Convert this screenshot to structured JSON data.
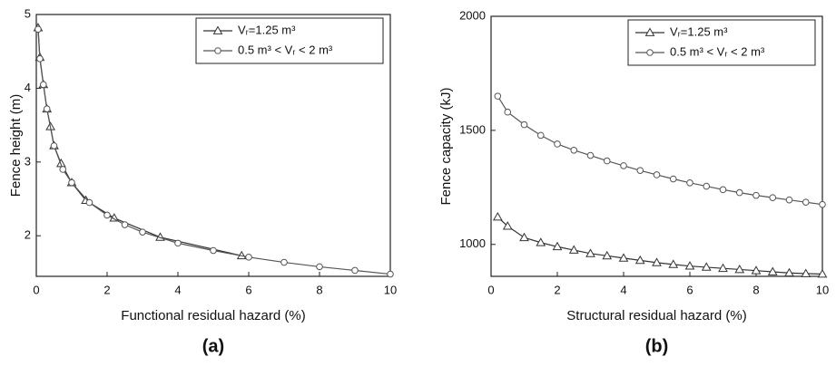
{
  "chart_data": [
    {
      "type": "line",
      "panel_label": "(a)",
      "x_label": "Functional residual hazard (%)",
      "y_label": "Fence height (m)",
      "xlim": [
        0,
        10
      ],
      "xticks": [
        0,
        2,
        4,
        6,
        8,
        10
      ],
      "ylim": [
        1.45,
        5
      ],
      "yticks": [
        2,
        3,
        4,
        5
      ],
      "legend": "upper right",
      "series": [
        {
          "name": "Vᵣ=1.25 m³",
          "color": "#333333",
          "marker": "triangle",
          "x": [
            0.05,
            0.1,
            0.2,
            0.3,
            0.4,
            0.5,
            0.7,
            1.0,
            1.4,
            2.2,
            3.5,
            5.8
          ],
          "values": [
            4.82,
            4.42,
            4.05,
            3.72,
            3.48,
            3.22,
            2.98,
            2.72,
            2.48,
            2.24,
            1.98,
            1.73
          ]
        },
        {
          "name": "0.5 m³ < Vᵣ < 2 m³",
          "color": "#555555",
          "marker": "circle",
          "x": [
            0.05,
            0.1,
            0.2,
            0.3,
            0.5,
            0.75,
            1,
            1.5,
            2,
            2.5,
            3,
            4,
            5,
            6,
            7,
            8,
            9,
            10
          ],
          "values": [
            4.8,
            4.4,
            4.05,
            3.72,
            3.22,
            2.9,
            2.72,
            2.45,
            2.28,
            2.15,
            2.05,
            1.9,
            1.8,
            1.71,
            1.64,
            1.58,
            1.53,
            1.48
          ]
        }
      ]
    },
    {
      "type": "line",
      "panel_label": "(b)",
      "x_label": "Structural residual hazard (%)",
      "y_label": "Fence capacity (kJ)",
      "xlim": [
        0,
        10
      ],
      "xticks": [
        0,
        2,
        4,
        6,
        8,
        10
      ],
      "ylim": [
        860,
        2000
      ],
      "yticks": [
        1000,
        1500,
        2000
      ],
      "legend": "upper right",
      "series": [
        {
          "name": "Vᵣ=1.25 m³",
          "color": "#333333",
          "marker": "triangle",
          "x": [
            0.2,
            0.5,
            1,
            1.5,
            2,
            2.5,
            3,
            3.5,
            4,
            4.5,
            5,
            5.5,
            6,
            6.5,
            7,
            7.5,
            8,
            8.5,
            9,
            9.5,
            10
          ],
          "values": [
            1120,
            1080,
            1030,
            1008,
            990,
            975,
            960,
            950,
            940,
            930,
            920,
            912,
            905,
            900,
            895,
            890,
            885,
            880,
            875,
            872,
            870
          ]
        },
        {
          "name": "0.5 m³ < Vᵣ < 2 m³",
          "color": "#555555",
          "marker": "circle",
          "x": [
            0.2,
            0.5,
            1,
            1.5,
            2,
            2.5,
            3,
            3.5,
            4,
            4.5,
            5,
            5.5,
            6,
            6.5,
            7,
            7.5,
            8,
            8.5,
            9,
            9.5,
            10
          ],
          "values": [
            1650,
            1580,
            1525,
            1478,
            1440,
            1413,
            1390,
            1366,
            1345,
            1324,
            1305,
            1287,
            1270,
            1255,
            1240,
            1227,
            1215,
            1205,
            1195,
            1185,
            1175
          ]
        }
      ]
    }
  ]
}
